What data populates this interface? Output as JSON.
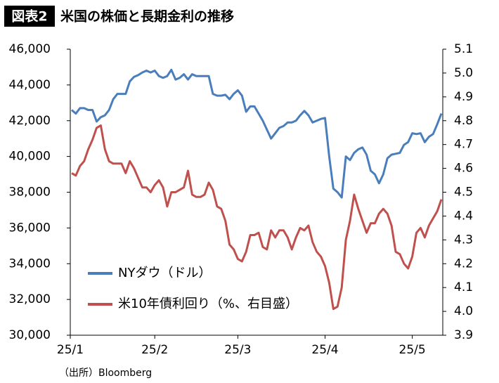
{
  "chart_data": {
    "type": "line",
    "title_tag": "図表2",
    "title": "米国の株価と長期金利の推移",
    "source": "（出所）Bloomberg",
    "categories": [
      "25/1",
      null,
      null,
      null,
      null,
      null,
      null,
      null,
      null,
      null,
      null,
      null,
      null,
      null,
      null,
      null,
      null,
      null,
      null,
      null,
      "25/2",
      null,
      null,
      null,
      null,
      null,
      null,
      null,
      null,
      null,
      null,
      null,
      null,
      null,
      null,
      null,
      null,
      null,
      null,
      null,
      "25/3",
      null,
      null,
      null,
      null,
      null,
      null,
      null,
      null,
      null,
      null,
      null,
      null,
      null,
      null,
      null,
      null,
      null,
      null,
      null,
      null,
      "25/4",
      null,
      null,
      null,
      null,
      null,
      null,
      null,
      null,
      null,
      null,
      null,
      null,
      null,
      null,
      null,
      null,
      null,
      null,
      null,
      null,
      "25/5",
      null,
      null,
      null,
      null,
      null,
      null,
      null
    ],
    "series": [
      {
        "name": "NYダウ（ドル）",
        "color": "#4a7ebb",
        "values": [
          42600,
          42400,
          42700,
          42700,
          42600,
          42600,
          41950,
          42200,
          42300,
          42600,
          43200,
          43500,
          43500,
          43500,
          44200,
          44450,
          44550,
          44700,
          44800,
          44700,
          44800,
          44500,
          44400,
          44500,
          44850,
          44300,
          44400,
          44600,
          44300,
          44600,
          44500,
          44500,
          44500,
          44500,
          43500,
          43400,
          43400,
          43450,
          43200,
          43500,
          43700,
          43400,
          42500,
          42800,
          42800,
          42400,
          42000,
          41500,
          41000,
          41300,
          41600,
          41700,
          41900,
          41900,
          42000,
          42300,
          42550,
          42300,
          41900,
          42000,
          42100,
          42150,
          40000,
          38200,
          38000,
          37700,
          40000,
          39800,
          40200,
          40400,
          40500,
          40100,
          39200,
          39000,
          38500,
          39000,
          39900,
          40100,
          40150,
          40200,
          40650,
          40800,
          41300,
          41250,
          41300,
          40800,
          41100,
          41250,
          41800,
          42400
        ]
      },
      {
        "name": "米10年債利回り（%、右目盛）",
        "color": "#c0504d",
        "axis": "y2",
        "values": [
          4.58,
          4.57,
          4.61,
          4.63,
          4.68,
          4.72,
          4.77,
          4.78,
          4.68,
          4.63,
          4.62,
          4.62,
          4.62,
          4.58,
          4.63,
          4.6,
          4.56,
          4.52,
          4.52,
          4.5,
          4.53,
          4.55,
          4.52,
          4.44,
          4.5,
          4.5,
          4.51,
          4.52,
          4.59,
          4.49,
          4.48,
          4.48,
          4.49,
          4.54,
          4.51,
          4.44,
          4.43,
          4.38,
          4.28,
          4.26,
          4.22,
          4.21,
          4.25,
          4.32,
          4.32,
          4.33,
          4.27,
          4.26,
          4.34,
          4.31,
          4.34,
          4.34,
          4.31,
          4.26,
          4.31,
          4.35,
          4.34,
          4.36,
          4.29,
          4.25,
          4.23,
          4.19,
          4.12,
          4.01,
          4.02,
          4.1,
          4.3,
          4.38,
          4.49,
          4.43,
          4.38,
          4.33,
          4.37,
          4.37,
          4.41,
          4.43,
          4.41,
          4.36,
          4.25,
          4.24,
          4.2,
          4.18,
          4.23,
          4.33,
          4.35,
          4.31,
          4.36,
          4.39,
          4.42,
          4.47
        ]
      }
    ],
    "ylim": [
      30000,
      46000
    ],
    "yticks": [
      {
        "value": 30000,
        "label": "30,000"
      },
      {
        "value": 32000,
        "label": "32,000"
      },
      {
        "value": 34000,
        "label": "34,000"
      },
      {
        "value": 36000,
        "label": "36,000"
      },
      {
        "value": 38000,
        "label": "38,000"
      },
      {
        "value": 40000,
        "label": "40,000"
      },
      {
        "value": 42000,
        "label": "42,000"
      },
      {
        "value": 44000,
        "label": "44,000"
      },
      {
        "value": 46000,
        "label": "46,000"
      }
    ],
    "y2lim": [
      3.9,
      5.1
    ],
    "y2ticks": [
      3.9,
      {
        "value": 4,
        "label": "4.0"
      },
      4.1,
      4.2,
      4.3,
      4.4,
      4.5,
      4.6,
      4.7,
      4.8,
      4.9,
      {
        "value": 5,
        "label": "5.0"
      },
      5.1
    ],
    "grid": false
  }
}
